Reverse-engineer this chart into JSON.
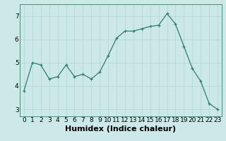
{
  "x": [
    0,
    1,
    2,
    3,
    4,
    5,
    6,
    7,
    8,
    9,
    10,
    11,
    12,
    13,
    14,
    15,
    16,
    17,
    18,
    19,
    20,
    21,
    22,
    23
  ],
  "y": [
    3.8,
    5.0,
    4.9,
    4.3,
    4.4,
    4.9,
    4.4,
    4.5,
    4.3,
    4.6,
    5.3,
    6.05,
    6.35,
    6.35,
    6.45,
    6.55,
    6.6,
    7.1,
    6.65,
    5.7,
    4.75,
    4.2,
    3.25,
    3.0
  ],
  "line_color": "#2e7d6e",
  "marker": "+",
  "marker_color": "#2e7d6e",
  "bg_color": "#cce8e8",
  "grid_color": "#b0d4d4",
  "xlabel": "Humidex (Indice chaleur)",
  "tick_fontsize": 6.5,
  "xlabel_fontsize": 8,
  "ylim": [
    2.7,
    7.5
  ],
  "yticks": [
    3,
    4,
    5,
    6,
    7
  ],
  "xlim": [
    -0.5,
    23.5
  ],
  "xticks": [
    0,
    1,
    2,
    3,
    4,
    5,
    6,
    7,
    8,
    9,
    10,
    11,
    12,
    13,
    14,
    15,
    16,
    17,
    18,
    19,
    20,
    21,
    22,
    23
  ]
}
